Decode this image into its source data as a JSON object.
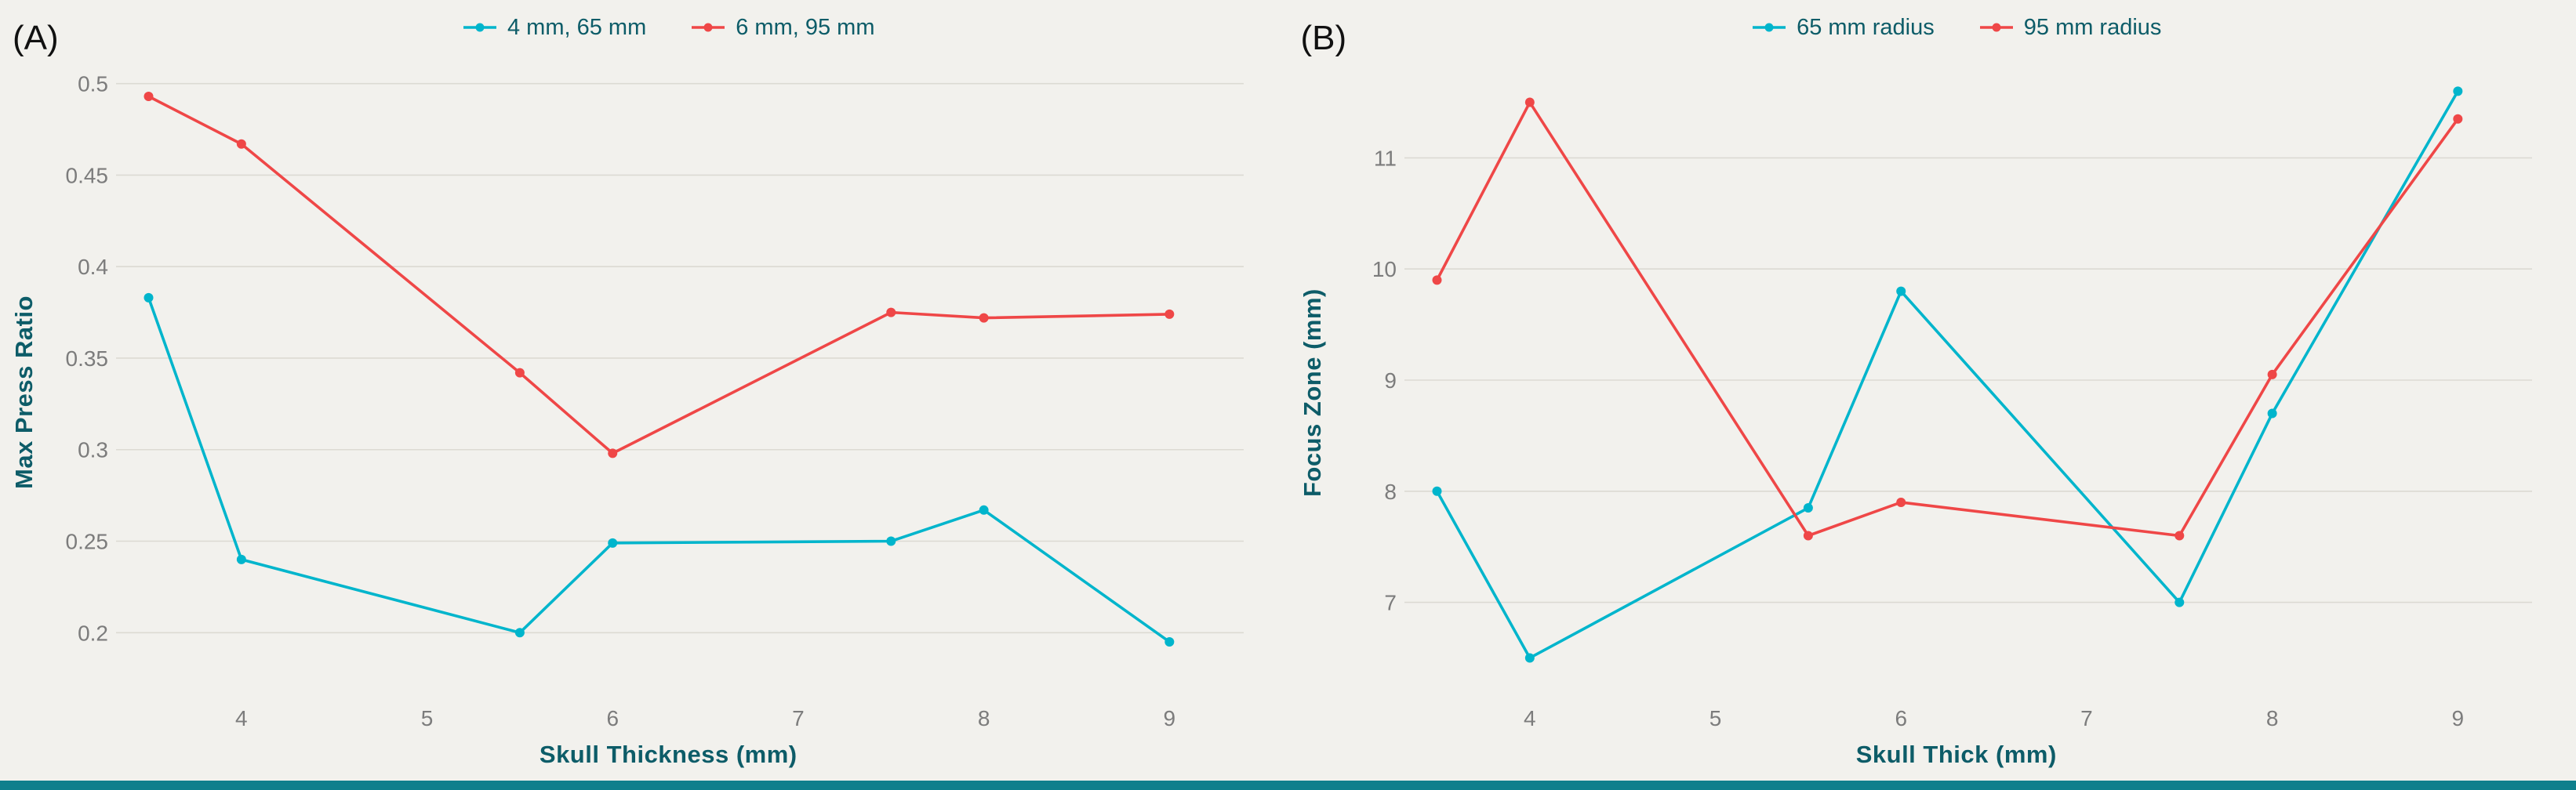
{
  "theme": {
    "background": "#f2f1ed",
    "grid_color": "#dcdad3",
    "tick_color": "#7c7c7c",
    "axis_label_color": "#0d5c68",
    "legend_text_color": "#0d5c68",
    "panel_label_color": "#111111",
    "bottom_bar_color": "#0f7f8c",
    "series_cyan": "#00b5cc",
    "series_red": "#ef4747"
  },
  "chart_data": [
    {
      "type": "line",
      "panel_label": "(A)",
      "title": "",
      "xlabel": "Skull Thickness (mm)",
      "ylabel": "Max Press Ratio",
      "x": [
        3.5,
        4,
        5.5,
        6,
        7.5,
        8,
        9
      ],
      "series": [
        {
          "name": "4 mm, 65 mm",
          "color": "#00b5cc",
          "values": [
            0.383,
            0.24,
            0.2,
            0.249,
            0.25,
            0.267,
            0.195
          ]
        },
        {
          "name": "6 mm, 95 mm",
          "color": "#ef4747",
          "values": [
            0.493,
            0.467,
            0.342,
            0.298,
            0.375,
            0.372,
            0.374
          ]
        }
      ],
      "xticks": [
        4,
        5,
        6,
        7,
        8,
        9
      ],
      "yticks": [
        0.2,
        0.25,
        0.3,
        0.35,
        0.4,
        0.45,
        0.5
      ],
      "xlim": [
        3.35,
        9.4
      ],
      "ylim": [
        0.168,
        0.508
      ],
      "grid": "horizontal",
      "legend_position": "top"
    },
    {
      "type": "line",
      "panel_label": "(B)",
      "title": "",
      "xlabel": "Skull Thick (mm)",
      "ylabel": "Focus Zone (mm)",
      "x": [
        3.5,
        4,
        5.5,
        6,
        7.5,
        8,
        9
      ],
      "series": [
        {
          "name": "65 mm radius",
          "color": "#00b5cc",
          "values": [
            8.0,
            6.5,
            7.85,
            9.8,
            7.0,
            8.7,
            11.6
          ]
        },
        {
          "name": "95 mm radius",
          "color": "#ef4747",
          "values": [
            9.9,
            11.5,
            7.6,
            7.9,
            7.6,
            9.05,
            11.35
          ]
        }
      ],
      "xticks": [
        4,
        5,
        6,
        7,
        8,
        9
      ],
      "yticks": [
        7,
        8,
        9,
        10,
        11
      ],
      "xlim": [
        3.35,
        9.4
      ],
      "ylim": [
        6.2,
        11.8
      ],
      "grid": "horizontal",
      "legend_position": "top"
    }
  ]
}
